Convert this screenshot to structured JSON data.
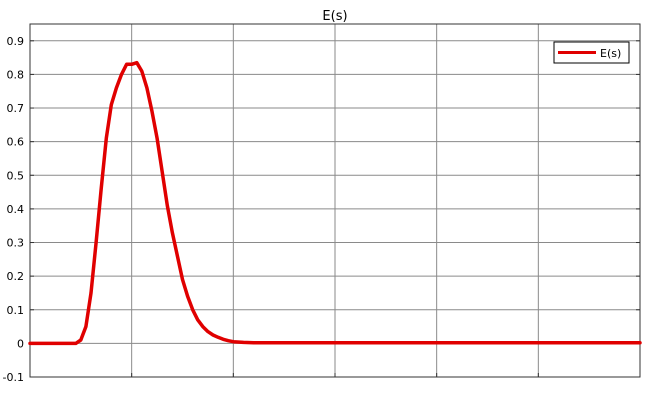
{
  "chart_data": {
    "type": "line",
    "title": "E(s)",
    "xlabel": "",
    "ylabel": "",
    "xlim": [
      0,
      6
    ],
    "ylim": [
      -0.1,
      0.95
    ],
    "x_ticks": [
      1,
      2,
      3,
      4,
      5,
      6
    ],
    "y_ticks": [
      -0.1,
      0,
      0.1,
      0.2,
      0.3,
      0.4,
      0.5,
      0.6,
      0.7,
      0.8,
      0.9
    ],
    "y_tick_labels": [
      "-0.1",
      "0",
      "0.1",
      "0.2",
      "0.3",
      "0.4",
      "0.5",
      "0.6",
      "0.7",
      "0.8",
      "0.9"
    ],
    "grid": true,
    "legend_position": "top-right",
    "series": [
      {
        "name": "E(s)",
        "color": "#e00000",
        "x": [
          0,
          0.45,
          0.5,
          0.55,
          0.6,
          0.65,
          0.7,
          0.75,
          0.8,
          0.85,
          0.9,
          0.95,
          1.0,
          1.05,
          1.1,
          1.15,
          1.2,
          1.25,
          1.3,
          1.35,
          1.4,
          1.45,
          1.5,
          1.55,
          1.6,
          1.65,
          1.7,
          1.75,
          1.8,
          1.85,
          1.9,
          1.95,
          2.0,
          2.1,
          2.2,
          2.3,
          2.5,
          3.0,
          4.0,
          5.0,
          6.0
        ],
        "y": [
          0,
          0,
          0.01,
          0.05,
          0.15,
          0.3,
          0.46,
          0.61,
          0.71,
          0.76,
          0.8,
          0.83,
          0.83,
          0.835,
          0.81,
          0.76,
          0.69,
          0.61,
          0.51,
          0.41,
          0.33,
          0.26,
          0.19,
          0.14,
          0.1,
          0.07,
          0.05,
          0.035,
          0.025,
          0.018,
          0.012,
          0.008,
          0.005,
          0.003,
          0.002,
          0.002,
          0.002,
          0.002,
          0.002,
          0.002,
          0.002
        ]
      }
    ]
  }
}
